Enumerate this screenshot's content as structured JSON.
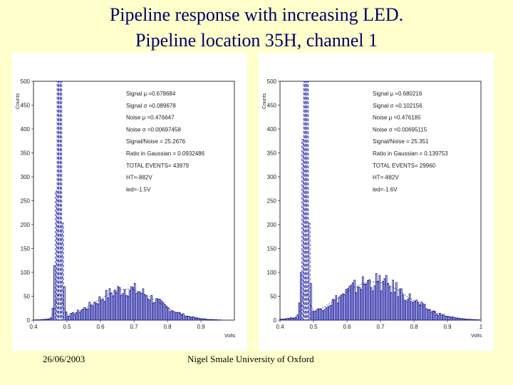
{
  "slide": {
    "title_line1": "Pipeline response with increasing LED.",
    "title_line2": "Pipeline location 35H, channel 1",
    "footer_date": "26/06/2003",
    "footer_author": "Nigel Smale University of Oxford"
  },
  "colors": {
    "bar": "#1a1aa0",
    "fit": "#333333",
    "title": "#000066",
    "background": "#ffffcc"
  },
  "chart_data": [
    {
      "type": "bar",
      "xlabel": "Volts",
      "ylabel": "Counts",
      "xlim": [
        0.4,
        1.0
      ],
      "ylim": [
        0,
        500
      ],
      "xticks": [
        "0.4",
        "0.5",
        "0.6",
        "0.7",
        "0.8",
        "0.9"
      ],
      "yticks": [
        "0",
        "50",
        "100",
        "150",
        "200",
        "250",
        "300",
        "350",
        "400",
        "450",
        "500"
      ],
      "stats": [
        "Signal μ =0.678684",
        "Signal σ =0.089678",
        "Noise μ =0.476647",
        "Noise σ =0.00697458",
        "Signal/Noise = 25.2676",
        "Ratio in Gaussian = 0.0932486",
        "TOTAL EVENTS=     43979",
        "HT=-882V",
        "led=-1.5V"
      ],
      "noise_peak": {
        "center": 0.476647,
        "sigma": 0.00697458,
        "height": 500
      },
      "signal": {
        "center": 0.678684,
        "sigma": 0.089678,
        "height": 65
      }
    },
    {
      "type": "bar",
      "xlabel": "Volts",
      "ylabel": "Counts",
      "xlim": [
        0.4,
        1.0
      ],
      "ylim": [
        0,
        500
      ],
      "xticks": [
        "0.4",
        "0.5",
        "0.6",
        "0.7",
        "0.8",
        "0.9",
        "1"
      ],
      "yticks": [
        "0",
        "50",
        "100",
        "150",
        "200",
        "250",
        "300",
        "350",
        "400",
        "450",
        "500"
      ],
      "stats": [
        "Signal μ =0.680216",
        "Signal σ =0.102156",
        "Noise μ =0.476185",
        "Noise σ =0.00695115",
        "Signal/Noise = 25.351",
        "Ratio in Gaussian = 0.139753",
        "TOTAL EVENTS=     29960",
        "HT=-882V",
        "led=-1.6V"
      ],
      "noise_peak": {
        "center": 0.476185,
        "sigma": 0.00695115,
        "height": 500
      },
      "signal": {
        "center": 0.680216,
        "sigma": 0.102156,
        "height": 80
      }
    }
  ]
}
